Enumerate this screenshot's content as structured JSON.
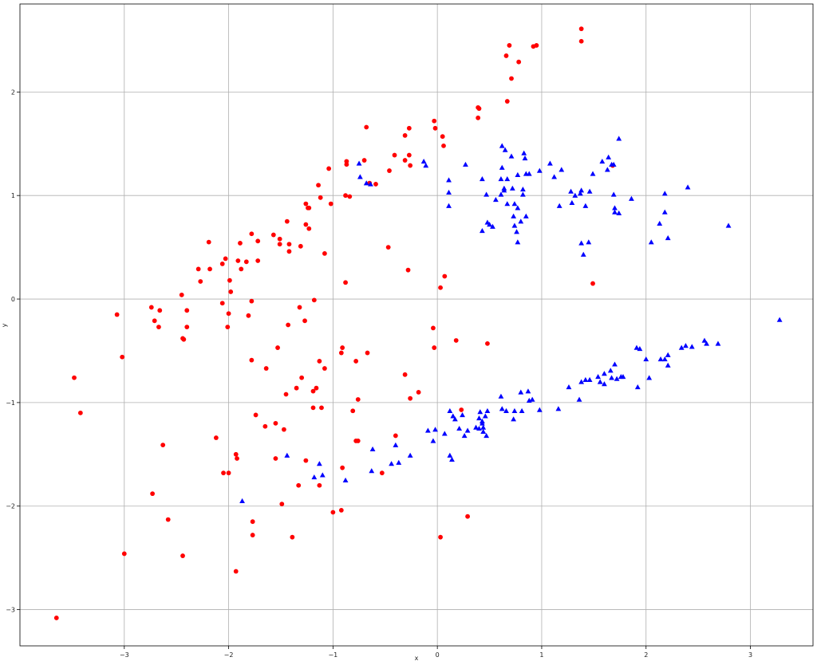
{
  "chart_data": {
    "type": "scatter",
    "title": "",
    "xlabel": "x",
    "ylabel": "y",
    "xlim": [
      -4.0,
      3.6
    ],
    "ylim": [
      -3.35,
      2.85
    ],
    "xticks": [
      -3,
      -2,
      -1,
      0,
      1,
      2,
      3
    ],
    "yticks": [
      -3,
      -2,
      -1,
      0,
      1,
      2
    ],
    "xtick_labels": [
      "−3",
      "−2",
      "−1",
      "0",
      "1",
      "2",
      "3"
    ],
    "ytick_labels": [
      "−3",
      "−2",
      "−1",
      "0",
      "1",
      "2"
    ],
    "grid": true,
    "series": [
      {
        "marker": "circle",
        "color": "#ff0000",
        "points": [
          [
            1.38,
            2.61
          ],
          [
            1.38,
            2.49
          ],
          [
            0.69,
            2.45
          ],
          [
            0.92,
            2.44
          ],
          [
            0.95,
            2.45
          ],
          [
            0.66,
            2.35
          ],
          [
            0.78,
            2.29
          ],
          [
            0.71,
            2.13
          ],
          [
            0.67,
            1.91
          ],
          [
            0.39,
            1.85
          ],
          [
            0.4,
            1.84
          ],
          [
            0.39,
            1.75
          ],
          [
            -0.03,
            1.72
          ],
          [
            -0.02,
            1.65
          ],
          [
            0.05,
            1.57
          ],
          [
            0.06,
            1.48
          ],
          [
            -0.68,
            1.66
          ],
          [
            -0.27,
            1.65
          ],
          [
            -0.31,
            1.58
          ],
          [
            -0.27,
            1.39
          ],
          [
            -0.41,
            1.39
          ],
          [
            -0.31,
            1.34
          ],
          [
            -0.26,
            1.29
          ],
          [
            -0.46,
            1.24
          ],
          [
            -0.7,
            1.34
          ],
          [
            -0.87,
            1.33
          ],
          [
            -0.87,
            1.3
          ],
          [
            -0.65,
            1.12
          ],
          [
            -0.59,
            1.11
          ],
          [
            -1.04,
            1.26
          ],
          [
            -1.14,
            1.1
          ],
          [
            -1.12,
            0.98
          ],
          [
            -0.88,
            1.0
          ],
          [
            -0.84,
            0.99
          ],
          [
            -1.02,
            0.92
          ],
          [
            -1.26,
            0.92
          ],
          [
            -1.24,
            0.88
          ],
          [
            -1.23,
            0.88
          ],
          [
            -1.26,
            0.72
          ],
          [
            -1.23,
            0.68
          ],
          [
            -1.44,
            0.75
          ],
          [
            -1.57,
            0.62
          ],
          [
            -1.51,
            0.58
          ],
          [
            -1.51,
            0.53
          ],
          [
            -1.42,
            0.53
          ],
          [
            -1.31,
            0.51
          ],
          [
            -1.42,
            0.46
          ],
          [
            -1.78,
            0.63
          ],
          [
            -1.72,
            0.56
          ],
          [
            -1.89,
            0.54
          ],
          [
            -2.19,
            0.55
          ],
          [
            -2.03,
            0.39
          ],
          [
            -2.06,
            0.34
          ],
          [
            -1.91,
            0.37
          ],
          [
            -1.83,
            0.36
          ],
          [
            -1.72,
            0.37
          ],
          [
            -1.88,
            0.29
          ],
          [
            -2.29,
            0.29
          ],
          [
            -2.18,
            0.29
          ],
          [
            -1.99,
            0.18
          ],
          [
            -2.27,
            0.17
          ],
          [
            -1.98,
            0.07
          ],
          [
            -2.45,
            0.04
          ],
          [
            -2.06,
            -0.04
          ],
          [
            -1.78,
            -0.02
          ],
          [
            -1.18,
            -0.01
          ],
          [
            -2.74,
            -0.08
          ],
          [
            -2.66,
            -0.11
          ],
          [
            -2.4,
            -0.11
          ],
          [
            -2.0,
            -0.14
          ],
          [
            -1.81,
            -0.16
          ],
          [
            -2.71,
            -0.21
          ],
          [
            -3.07,
            -0.15
          ],
          [
            -2.67,
            -0.27
          ],
          [
            -2.4,
            -0.27
          ],
          [
            -2.01,
            -0.27
          ],
          [
            -1.43,
            -0.25
          ],
          [
            -1.27,
            -0.21
          ],
          [
            -1.32,
            -0.08
          ],
          [
            -1.08,
            0.44
          ],
          [
            -0.88,
            0.16
          ],
          [
            -0.47,
            0.5
          ],
          [
            -0.28,
            0.28
          ],
          [
            0.07,
            0.22
          ],
          [
            0.03,
            0.11
          ],
          [
            1.49,
            0.15
          ],
          [
            1.68,
            1.29
          ],
          [
            -2.44,
            -0.38
          ],
          [
            -2.43,
            -0.39
          ],
          [
            -3.02,
            -0.56
          ],
          [
            -3.48,
            -0.76
          ],
          [
            -3.42,
            -1.1
          ],
          [
            -1.78,
            -0.59
          ],
          [
            -1.53,
            -0.47
          ],
          [
            -1.64,
            -0.67
          ],
          [
            -1.3,
            -0.76
          ],
          [
            -1.13,
            -0.6
          ],
          [
            -1.08,
            -0.67
          ],
          [
            -0.91,
            -0.47
          ],
          [
            -0.92,
            -0.52
          ],
          [
            -0.67,
            -0.52
          ],
          [
            -0.78,
            -0.6
          ],
          [
            -0.31,
            -0.73
          ],
          [
            -0.04,
            -0.28
          ],
          [
            -0.03,
            -0.47
          ],
          [
            0.18,
            -0.4
          ],
          [
            0.48,
            -0.43
          ],
          [
            -0.18,
            -0.9
          ],
          [
            -0.26,
            -0.96
          ],
          [
            -1.35,
            -0.86
          ],
          [
            -1.45,
            -0.92
          ],
          [
            -1.16,
            -0.86
          ],
          [
            -1.19,
            -0.89
          ],
          [
            -0.76,
            -0.97
          ],
          [
            -1.19,
            -1.05
          ],
          [
            -1.11,
            -1.05
          ],
          [
            -0.81,
            -1.08
          ],
          [
            -1.74,
            -1.12
          ],
          [
            -1.65,
            -1.23
          ],
          [
            -1.55,
            -1.2
          ],
          [
            -1.47,
            -1.26
          ],
          [
            -2.12,
            -1.34
          ],
          [
            -2.63,
            -1.41
          ],
          [
            -0.78,
            -1.37
          ],
          [
            -0.76,
            -1.37
          ],
          [
            -0.4,
            -1.32
          ],
          [
            -1.93,
            -1.5
          ],
          [
            -1.92,
            -1.54
          ],
          [
            -1.55,
            -1.54
          ],
          [
            -1.26,
            -1.56
          ],
          [
            -2.05,
            -1.68
          ],
          [
            -2.0,
            -1.68
          ],
          [
            -0.91,
            -1.63
          ],
          [
            -0.53,
            -1.68
          ],
          [
            -1.33,
            -1.8
          ],
          [
            -1.13,
            -1.8
          ],
          [
            -2.73,
            -1.88
          ],
          [
            -1.49,
            -1.98
          ],
          [
            -0.92,
            -2.04
          ],
          [
            -1.0,
            -2.06
          ],
          [
            -2.58,
            -2.13
          ],
          [
            -1.77,
            -2.15
          ],
          [
            -1.77,
            -2.28
          ],
          [
            -1.39,
            -2.3
          ],
          [
            -3.0,
            -2.46
          ],
          [
            -2.44,
            -2.48
          ],
          [
            -1.93,
            -2.63
          ],
          [
            -3.65,
            -3.08
          ],
          [
            0.23,
            -1.07
          ],
          [
            0.29,
            -2.1
          ],
          [
            0.03,
            -2.3
          ]
        ]
      },
      {
        "marker": "triangle",
        "color": "#0000ff",
        "points": [
          [
            1.74,
            1.55
          ],
          [
            0.62,
            1.48
          ],
          [
            0.65,
            1.44
          ],
          [
            0.83,
            1.41
          ],
          [
            0.84,
            1.36
          ],
          [
            0.71,
            1.38
          ],
          [
            1.08,
            1.31
          ],
          [
            1.58,
            1.33
          ],
          [
            1.64,
            1.37
          ],
          [
            1.67,
            1.3
          ],
          [
            1.69,
            1.3
          ],
          [
            1.63,
            1.25
          ],
          [
            1.49,
            1.21
          ],
          [
            1.19,
            1.25
          ],
          [
            1.12,
            1.18
          ],
          [
            0.27,
            1.3
          ],
          [
            -0.13,
            1.33
          ],
          [
            -0.11,
            1.29
          ],
          [
            -0.75,
            1.31
          ],
          [
            -0.74,
            1.18
          ],
          [
            -0.68,
            1.12
          ],
          [
            -0.64,
            1.11
          ],
          [
            0.11,
            1.15
          ],
          [
            0.11,
            1.03
          ],
          [
            0.11,
            0.9
          ],
          [
            0.43,
            1.16
          ],
          [
            0.61,
            1.16
          ],
          [
            0.62,
            1.27
          ],
          [
            0.67,
            1.16
          ],
          [
            0.64,
            1.07
          ],
          [
            0.64,
            1.05
          ],
          [
            0.72,
            1.07
          ],
          [
            0.82,
            1.06
          ],
          [
            0.77,
            1.2
          ],
          [
            0.85,
            1.21
          ],
          [
            0.88,
            1.21
          ],
          [
            0.98,
            1.24
          ],
          [
            0.47,
            1.01
          ],
          [
            0.61,
            1.01
          ],
          [
            0.56,
            0.96
          ],
          [
            0.67,
            0.92
          ],
          [
            0.74,
            0.92
          ],
          [
            0.77,
            0.88
          ],
          [
            0.82,
            1.01
          ],
          [
            1.28,
            1.04
          ],
          [
            1.32,
            1.0
          ],
          [
            1.37,
            1.02
          ],
          [
            1.38,
            1.05
          ],
          [
            1.46,
            1.04
          ],
          [
            1.29,
            0.93
          ],
          [
            1.42,
            0.9
          ],
          [
            1.17,
            0.9
          ],
          [
            1.69,
            1.01
          ],
          [
            1.7,
            0.88
          ],
          [
            1.7,
            0.84
          ],
          [
            1.74,
            0.83
          ],
          [
            1.86,
            0.97
          ],
          [
            2.18,
            1.02
          ],
          [
            2.4,
            1.08
          ],
          [
            2.18,
            0.84
          ],
          [
            2.79,
            0.71
          ],
          [
            0.73,
            0.8
          ],
          [
            0.74,
            0.71
          ],
          [
            0.76,
            0.65
          ],
          [
            0.8,
            0.75
          ],
          [
            0.85,
            0.8
          ],
          [
            0.5,
            0.72
          ],
          [
            0.53,
            0.7
          ],
          [
            0.48,
            0.74
          ],
          [
            0.43,
            0.66
          ],
          [
            0.77,
            0.55
          ],
          [
            1.38,
            0.54
          ],
          [
            1.4,
            0.43
          ],
          [
            1.45,
            0.55
          ],
          [
            2.05,
            0.55
          ],
          [
            2.13,
            0.73
          ],
          [
            2.21,
            0.59
          ],
          [
            3.28,
            -0.2
          ],
          [
            2.56,
            -0.4
          ],
          [
            2.58,
            -0.43
          ],
          [
            2.69,
            -0.43
          ],
          [
            2.34,
            -0.47
          ],
          [
            2.38,
            -0.45
          ],
          [
            2.44,
            -0.46
          ],
          [
            1.91,
            -0.47
          ],
          [
            1.94,
            -0.48
          ],
          [
            2.0,
            -0.58
          ],
          [
            2.14,
            -0.58
          ],
          [
            2.18,
            -0.58
          ],
          [
            2.21,
            -0.54
          ],
          [
            2.21,
            -0.64
          ],
          [
            2.03,
            -0.76
          ],
          [
            1.7,
            -0.63
          ],
          [
            1.66,
            -0.69
          ],
          [
            1.6,
            -0.72
          ],
          [
            1.54,
            -0.75
          ],
          [
            1.56,
            -0.8
          ],
          [
            1.6,
            -0.82
          ],
          [
            1.67,
            -0.76
          ],
          [
            1.72,
            -0.77
          ],
          [
            1.76,
            -0.75
          ],
          [
            1.78,
            -0.75
          ],
          [
            1.92,
            -0.85
          ],
          [
            1.38,
            -0.8
          ],
          [
            1.42,
            -0.78
          ],
          [
            1.46,
            -0.78
          ],
          [
            1.26,
            -0.85
          ],
          [
            1.36,
            -0.97
          ],
          [
            0.8,
            -0.9
          ],
          [
            0.87,
            -0.89
          ],
          [
            0.88,
            -0.98
          ],
          [
            0.91,
            -0.97
          ],
          [
            0.61,
            -0.94
          ],
          [
            0.62,
            -1.06
          ],
          [
            0.66,
            -1.08
          ],
          [
            0.74,
            -1.08
          ],
          [
            0.81,
            -1.08
          ],
          [
            0.98,
            -1.07
          ],
          [
            1.16,
            -1.06
          ],
          [
            0.73,
            -1.16
          ],
          [
            0.12,
            -1.08
          ],
          [
            0.15,
            -1.13
          ],
          [
            0.17,
            -1.16
          ],
          [
            0.24,
            -1.12
          ],
          [
            0.21,
            -1.25
          ],
          [
            0.29,
            -1.27
          ],
          [
            0.26,
            -1.32
          ],
          [
            0.37,
            -1.24
          ],
          [
            0.4,
            -1.25
          ],
          [
            0.4,
            -1.15
          ],
          [
            0.41,
            -1.09
          ],
          [
            0.43,
            -1.18
          ],
          [
            0.43,
            -1.2
          ],
          [
            0.44,
            -1.24
          ],
          [
            0.46,
            -1.13
          ],
          [
            0.48,
            -1.08
          ],
          [
            0.47,
            -1.32
          ],
          [
            0.44,
            -1.28
          ],
          [
            -0.09,
            -1.27
          ],
          [
            -0.04,
            -1.37
          ],
          [
            -0.02,
            -1.26
          ],
          [
            0.07,
            -1.3
          ],
          [
            0.12,
            -1.51
          ],
          [
            0.14,
            -1.55
          ],
          [
            -0.26,
            -1.51
          ],
          [
            -0.37,
            -1.58
          ],
          [
            -0.44,
            -1.59
          ],
          [
            -0.4,
            -1.41
          ],
          [
            -0.62,
            -1.45
          ],
          [
            -0.63,
            -1.66
          ],
          [
            -1.44,
            -1.51
          ],
          [
            -1.13,
            -1.59
          ],
          [
            -1.18,
            -1.72
          ],
          [
            -1.1,
            -1.7
          ],
          [
            -0.88,
            -1.75
          ],
          [
            -1.87,
            -1.95
          ]
        ]
      }
    ]
  }
}
